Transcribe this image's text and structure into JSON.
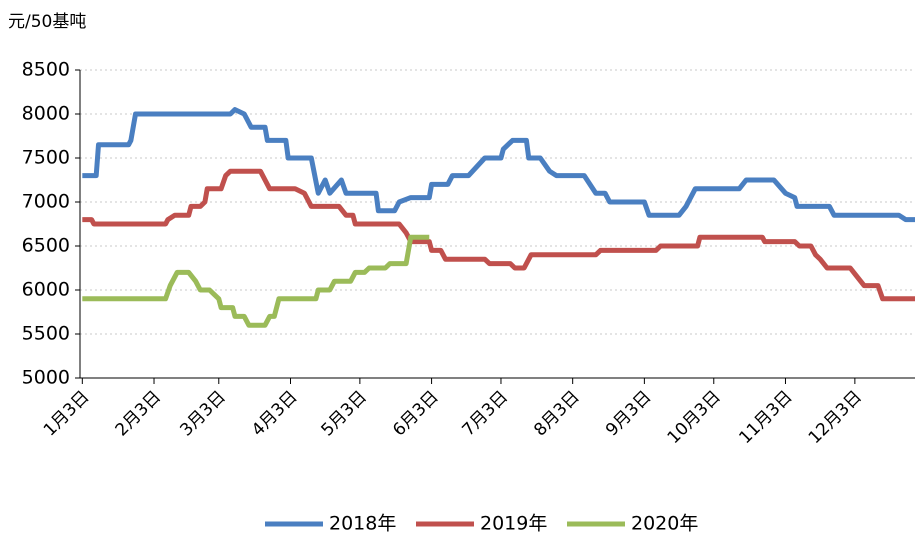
{
  "chart_data": {
    "type": "line",
    "y_axis_label": "元/50基吨",
    "xlim": [
      2,
      363
    ],
    "xticks": [
      {
        "value": 3,
        "label": "1月3日"
      },
      {
        "value": 34,
        "label": "2月3日"
      },
      {
        "value": 62,
        "label": "3月3日"
      },
      {
        "value": 93,
        "label": "4月3日"
      },
      {
        "value": 123,
        "label": "5月3日"
      },
      {
        "value": 154,
        "label": "6月3日"
      },
      {
        "value": 184,
        "label": "7月3日"
      },
      {
        "value": 215,
        "label": "8月3日"
      },
      {
        "value": 246,
        "label": "9月3日"
      },
      {
        "value": 276,
        "label": "10月3日"
      },
      {
        "value": 307,
        "label": "11月3日"
      },
      {
        "value": 337,
        "label": "12月3日"
      }
    ],
    "ylim": [
      5000,
      8500
    ],
    "yticks": [
      5000,
      5500,
      6000,
      6500,
      7000,
      7500,
      8000,
      8500
    ],
    "grid": true,
    "legend": "bottom",
    "series": [
      {
        "name": "2018年",
        "color": "#4a7fc1",
        "x": [
          3,
          9,
          10,
          23,
          24,
          26,
          67,
          69,
          73,
          76,
          82,
          83,
          91,
          92,
          102,
          105,
          108,
          110,
          115,
          117,
          130,
          131,
          138,
          140,
          145,
          153,
          154,
          161,
          163,
          170,
          177,
          184,
          185,
          189,
          195,
          196,
          201,
          205,
          208,
          220,
          225,
          229,
          231,
          246,
          248,
          261,
          264,
          268,
          287,
          290,
          302,
          307,
          311,
          312,
          326,
          328,
          356,
          359,
          363
        ],
        "values": [
          7300,
          7300,
          7650,
          7650,
          7700,
          8000,
          8000,
          8050,
          8000,
          7850,
          7850,
          7700,
          7700,
          7500,
          7500,
          7100,
          7250,
          7100,
          7250,
          7100,
          7100,
          6900,
          6900,
          7000,
          7050,
          7050,
          7200,
          7200,
          7300,
          7300,
          7500,
          7500,
          7600,
          7700,
          7700,
          7500,
          7500,
          7350,
          7300,
          7300,
          7100,
          7100,
          7000,
          7000,
          6850,
          6850,
          6950,
          7150,
          7150,
          7250,
          7250,
          7100,
          7050,
          6950,
          6950,
          6850,
          6850,
          6800,
          6800
        ]
      },
      {
        "name": "2019年",
        "color": "#c0504d",
        "x": [
          3,
          7,
          8,
          39,
          40,
          43,
          49,
          50,
          54,
          56,
          57,
          63,
          65,
          67,
          80,
          82,
          84,
          95,
          99,
          102,
          114,
          117,
          120,
          121,
          140,
          143,
          145,
          153,
          154,
          158,
          160,
          177,
          179,
          188,
          190,
          194,
          197,
          225,
          227,
          251,
          253,
          269,
          270,
          297,
          298,
          311,
          313,
          318,
          320,
          322,
          325,
          335,
          338,
          341,
          347,
          349,
          363
        ],
        "values": [
          6800,
          6800,
          6750,
          6750,
          6800,
          6850,
          6850,
          6950,
          6950,
          7000,
          7150,
          7150,
          7300,
          7350,
          7350,
          7250,
          7150,
          7150,
          7100,
          6950,
          6950,
          6850,
          6850,
          6750,
          6750,
          6650,
          6550,
          6550,
          6450,
          6450,
          6350,
          6350,
          6300,
          6300,
          6250,
          6250,
          6400,
          6400,
          6450,
          6450,
          6500,
          6500,
          6600,
          6600,
          6550,
          6550,
          6500,
          6500,
          6400,
          6350,
          6250,
          6250,
          6150,
          6050,
          6050,
          5900,
          5900
        ]
      },
      {
        "name": "2020年",
        "color": "#9bbb59",
        "x": [
          3,
          39,
          41,
          44,
          49,
          52,
          54,
          58,
          62,
          63,
          68,
          69,
          73,
          75,
          82,
          84,
          86,
          88,
          104,
          105,
          110,
          112,
          119,
          121,
          125,
          127,
          134,
          136,
          143,
          145,
          153
        ],
        "values": [
          5900,
          5900,
          6050,
          6200,
          6200,
          6100,
          6000,
          6000,
          5900,
          5800,
          5800,
          5700,
          5700,
          5600,
          5600,
          5700,
          5700,
          5900,
          5900,
          6000,
          6000,
          6100,
          6100,
          6200,
          6200,
          6250,
          6250,
          6300,
          6300,
          6600,
          6600
        ]
      }
    ]
  }
}
